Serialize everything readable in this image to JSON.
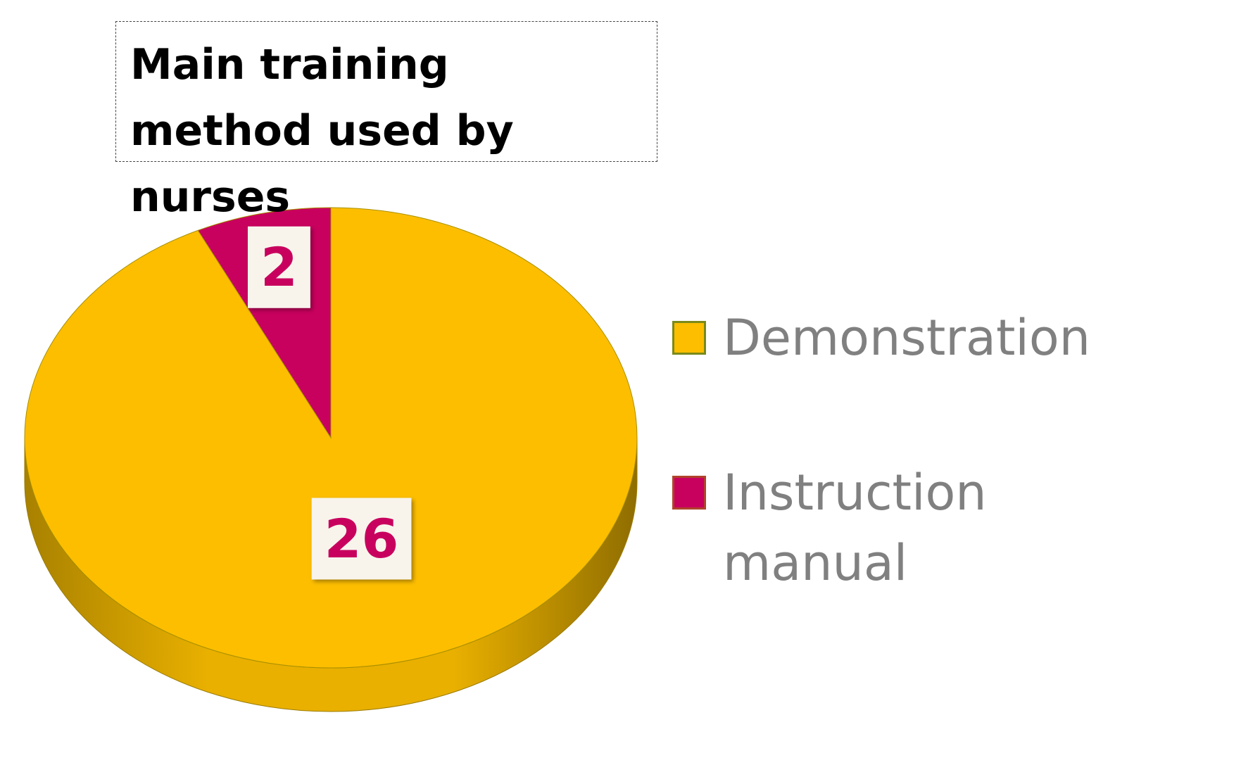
{
  "chart_data": {
    "type": "pie",
    "title": "Main training method used by nurses",
    "categories": [
      "Demonstration",
      "Instruction manual"
    ],
    "values": [
      26,
      2
    ],
    "colors": [
      "#fdbe00",
      "#c8005e"
    ],
    "legend": "right"
  }
}
